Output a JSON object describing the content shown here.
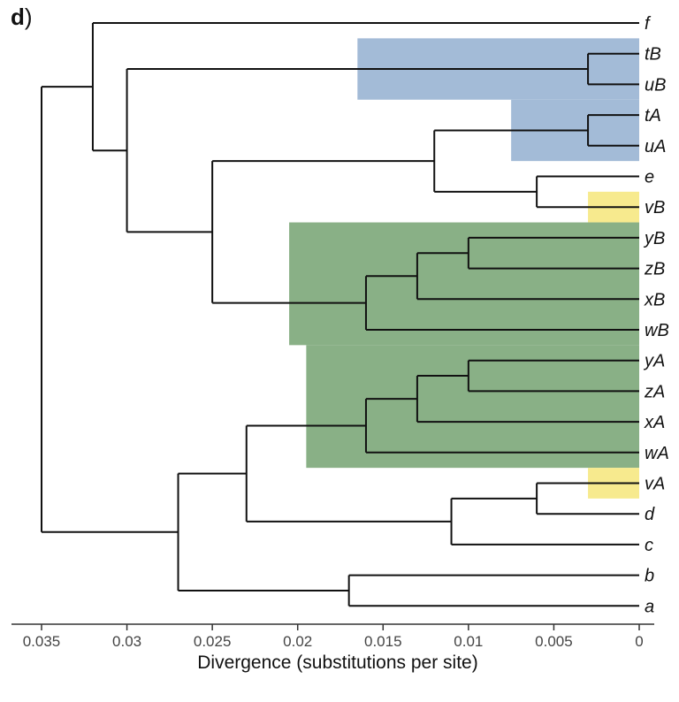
{
  "panel_label": {
    "letter": "d",
    "paren": ")"
  },
  "axis": {
    "title": "Divergence (substitutions per site)",
    "ticks": [
      {
        "value": 0.035,
        "label": "0.035"
      },
      {
        "value": 0.03,
        "label": "0.03"
      },
      {
        "value": 0.025,
        "label": "0.025"
      },
      {
        "value": 0.02,
        "label": "0.02"
      },
      {
        "value": 0.015,
        "label": "0.015"
      },
      {
        "value": 0.01,
        "label": "0.01"
      },
      {
        "value": 0.005,
        "label": "0.005"
      },
      {
        "value": 0,
        "label": "0"
      }
    ],
    "range": [
      0.0357,
      -0.0013
    ]
  },
  "colors": {
    "blue_highlight": "#a3bbd7",
    "green_highlight": "#89b086",
    "yellow_highlight": "#f7ea8e",
    "branch": "#111111"
  },
  "leaves": [
    "f",
    "tB",
    "uB",
    "tA",
    "uA",
    "e",
    "vB",
    "yB",
    "zB",
    "xB",
    "wB",
    "yA",
    "zA",
    "xA",
    "wA",
    "vA",
    "d",
    "c",
    "b",
    "a"
  ],
  "tree": {
    "depth": 0.035,
    "children": [
      {
        "depth": 0.032,
        "children": [
          {
            "leaf": "f"
          },
          {
            "depth": 0.03,
            "children": [
              {
                "depth": 0.003,
                "children": [
                  {
                    "leaf": "tB"
                  },
                  {
                    "leaf": "uB"
                  }
                ]
              },
              {
                "depth": 0.025,
                "children": [
                  {
                    "depth": 0.012,
                    "children": [
                      {
                        "depth": 0.003,
                        "children": [
                          {
                            "leaf": "tA"
                          },
                          {
                            "leaf": "uA"
                          }
                        ]
                      },
                      {
                        "depth": 0.006,
                        "children": [
                          {
                            "leaf": "e"
                          },
                          {
                            "leaf": "vB"
                          }
                        ]
                      }
                    ]
                  },
                  {
                    "depth": 0.016,
                    "children": [
                      {
                        "depth": 0.013,
                        "children": [
                          {
                            "depth": 0.01,
                            "children": [
                              {
                                "leaf": "yB"
                              },
                              {
                                "leaf": "zB"
                              }
                            ]
                          },
                          {
                            "leaf": "xB"
                          }
                        ]
                      },
                      {
                        "leaf": "wB"
                      }
                    ]
                  }
                ]
              }
            ]
          }
        ]
      },
      {
        "depth": 0.027,
        "children": [
          {
            "depth": 0.023,
            "children": [
              {
                "depth": 0.016,
                "children": [
                  {
                    "depth": 0.013,
                    "children": [
                      {
                        "depth": 0.01,
                        "children": [
                          {
                            "leaf": "yA"
                          },
                          {
                            "leaf": "zA"
                          }
                        ]
                      },
                      {
                        "leaf": "xA"
                      }
                    ]
                  },
                  {
                    "leaf": "wA"
                  }
                ]
              },
              {
                "depth": 0.011,
                "children": [
                  {
                    "depth": 0.006,
                    "children": [
                      {
                        "leaf": "vA"
                      },
                      {
                        "leaf": "d"
                      }
                    ]
                  },
                  {
                    "leaf": "c"
                  }
                ]
              }
            ]
          },
          {
            "depth": 0.017,
            "children": [
              {
                "leaf": "b"
              },
              {
                "leaf": "a"
              }
            ]
          }
        ]
      }
    ]
  },
  "highlights": [
    {
      "color": "blue_highlight",
      "depth": 0.0165,
      "from": "tB",
      "to": "uB"
    },
    {
      "color": "blue_highlight",
      "depth": 0.0075,
      "from": "tA",
      "to": "uA"
    },
    {
      "color": "yellow_highlight",
      "depth": 0.003,
      "from": "vB",
      "to": "vB"
    },
    {
      "color": "green_highlight",
      "depth": 0.0205,
      "from": "yB",
      "to": "wB"
    },
    {
      "color": "green_highlight",
      "depth": 0.0195,
      "from": "yA",
      "to": "wA"
    },
    {
      "color": "yellow_highlight",
      "depth": 0.003,
      "from": "vA",
      "to": "vA"
    }
  ]
}
